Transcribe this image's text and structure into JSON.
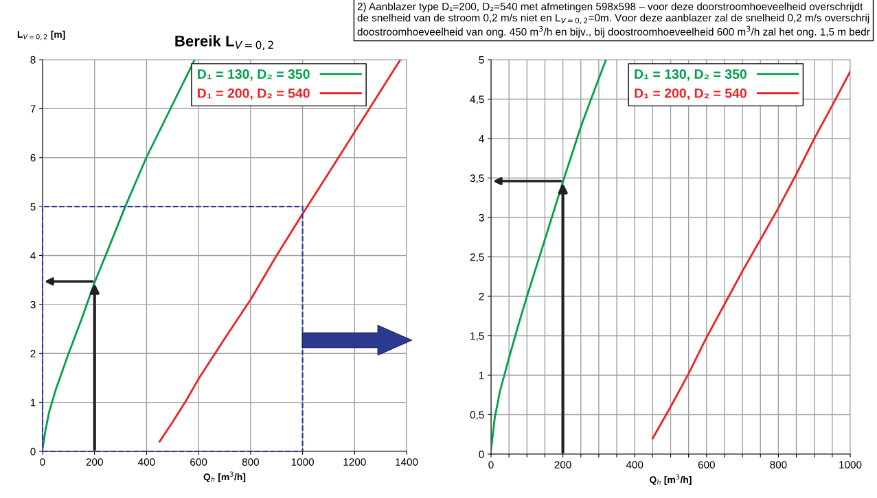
{
  "chart_data": [
    {
      "type": "line",
      "title": "Bereik L$_{V=0,2}$",
      "ylabel": "L$_{V=0,2}$ [m]",
      "xlabel": "Q$_{h}$ [m$^{3}$/h]",
      "xlim": [
        0,
        1400
      ],
      "ylim": [
        0,
        8
      ],
      "xticks": [
        0,
        200,
        400,
        600,
        800,
        1000,
        1200,
        1400
      ],
      "yticks": [
        0,
        1,
        2,
        3,
        4,
        5,
        6,
        7,
        8
      ],
      "grid": true,
      "legend": "top right",
      "series": [
        {
          "name": "D₁ = 130, D₂ = 350",
          "color": "#00a04a",
          "x": [
            0,
            10,
            25,
            50,
            100,
            150,
            200,
            250,
            318,
            399,
            585
          ],
          "values": [
            0.05,
            0.4,
            0.8,
            1.25,
            2.0,
            2.7,
            3.45,
            4.1,
            5.0,
            6.0,
            8.0
          ]
        },
        {
          "name": "D₁ = 200, D₂ = 540",
          "color": "#ee2124",
          "x": [
            450,
            500,
            550,
            600,
            700,
            800,
            900,
            1000,
            1138,
            1376
          ],
          "values": [
            0.2,
            0.6,
            1.02,
            1.48,
            2.3,
            3.1,
            4.0,
            4.85,
            6.0,
            8.0
          ]
        }
      ]
    },
    {
      "type": "line",
      "xlabel": "Q$_{h}$ [m$^{3}$/h]",
      "xlim": [
        0,
        1000
      ],
      "ylim": [
        0,
        5
      ],
      "xticks": [
        0,
        {
          "value": 50,
          "label": null
        },
        {
          "value": 100,
          "label": null
        },
        {
          "value": 150,
          "label": null
        },
        200,
        {
          "value": 250,
          "label": null
        },
        {
          "value": 300,
          "label": null
        },
        {
          "value": 350,
          "label": null
        },
        400,
        {
          "value": 450,
          "label": null
        },
        {
          "value": 500,
          "label": null
        },
        {
          "value": 550,
          "label": null
        },
        600,
        {
          "value": 650,
          "label": null
        },
        {
          "value": 700,
          "label": null
        },
        {
          "value": 750,
          "label": null
        },
        800,
        {
          "value": 850,
          "label": null
        },
        {
          "value": 900,
          "label": null
        },
        {
          "value": 950,
          "label": null
        },
        1000
      ],
      "yticks": [
        0,
        {
          "value": 0.5,
          "label": "0,5"
        },
        1,
        {
          "value": 1.5,
          "label": "1,5"
        },
        2,
        {
          "value": 2.5,
          "label": "2,5"
        },
        3,
        {
          "value": 3.5,
          "label": "3,5"
        },
        4,
        {
          "value": 4.5,
          "label": "4,5"
        },
        5
      ],
      "grid": true,
      "legend": "top right",
      "annotations": [
        "2) Aanblazer type D₁=200, D₂=540 met afmetingen 598x598 – voor deze doorstroomhoeveelheid overschrijdt de snelheid van de stroom 0,2 m/s niet en L$_{V=0,2}$=0m. Voor deze aanblazer zal de snelheid 0,2 m/s overschrij doostroomhoeveelheid van ong. 450 m$^{3}$/h en bijv., bij doostroomhoeveelheid 600 m$^{3}$/h zal het ong. 1,5 m bedr"
      ],
      "series": [
        {
          "name": "D₁ = 130, D₂ = 350",
          "color": "#00a04a",
          "x": [
            0,
            10,
            25,
            50,
            75,
            100,
            150,
            200,
            250,
            280,
            320
          ],
          "values": [
            0.05,
            0.45,
            0.8,
            1.22,
            1.62,
            2.0,
            2.72,
            3.45,
            4.15,
            4.52,
            5.0
          ]
        },
        {
          "name": "D₁ = 200, D₂ = 540",
          "color": "#ee2124",
          "x": [
            450,
            500,
            550,
            600,
            650,
            700,
            750,
            800,
            850,
            900,
            950,
            1000
          ],
          "values": [
            0.2,
            0.6,
            1.02,
            1.48,
            1.9,
            2.32,
            2.72,
            3.12,
            3.55,
            4.0,
            4.42,
            4.85
          ]
        }
      ]
    }
  ]
}
